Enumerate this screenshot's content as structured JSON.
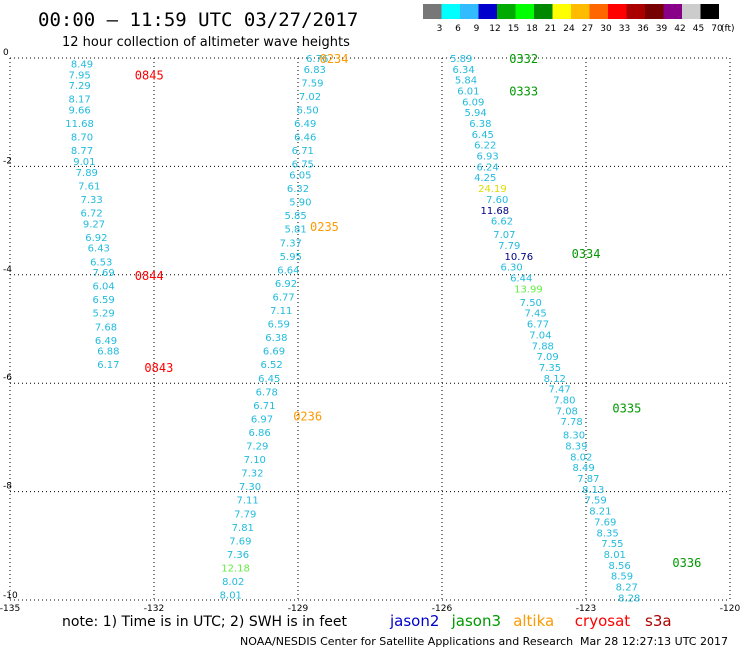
{
  "header": {
    "title": "00:00 – 11:59 UTC 03/27/2017",
    "subtitle": "12 hour collection of altimeter wave heights"
  },
  "colorbar": {
    "unit": "(ft)",
    "labels": [
      "3",
      "6",
      "9",
      "12",
      "15",
      "18",
      "21",
      "24",
      "27",
      "30",
      "33",
      "36",
      "39",
      "42",
      "45",
      "70"
    ],
    "colors": [
      "#777777",
      "#00ffff",
      "#33bbff",
      "#0000cc",
      "#00aa00",
      "#00ff00",
      "#008800",
      "#ffff00",
      "#ffbb00",
      "#ff6600",
      "#ff0000",
      "#aa0000",
      "#770000",
      "#880088",
      "#cccccc",
      "#000000"
    ]
  },
  "footer": {
    "note": "note: 1) Time is in UTC; 2) SWH is in feet",
    "credit": "NOAA/NESDIS Center for Satellite Applications and Research",
    "timestamp": "Mar 28 12:27:13 UTC 2017"
  },
  "satellites": [
    {
      "name": "jason2",
      "color": "#0000cc"
    },
    {
      "name": "jason3",
      "color": "#009900"
    },
    {
      "name": "altika",
      "color": "#ff9900"
    },
    {
      "name": "cryosat",
      "color": "#ff0000"
    },
    {
      "name": "s3a",
      "color": "#aa0000"
    }
  ],
  "chart_data": {
    "type": "scatter",
    "x_ticks": [
      -135,
      -132,
      -129,
      -126,
      -123,
      -120
    ],
    "y_ticks": [
      0,
      -2,
      -4,
      -6,
      -8,
      -10
    ],
    "xlim": [
      -135,
      -120
    ],
    "ylim": [
      -10,
      0
    ],
    "grid": true,
    "series": [
      {
        "name": "cryosat",
        "color": "#ff0000",
        "track_labels": [
          {
            "text": "0845",
            "x": -132.4,
            "y": -0.3
          },
          {
            "text": "0844",
            "x": -132.4,
            "y": -4.0
          },
          {
            "text": "0843",
            "x": -132.2,
            "y": -5.7
          }
        ],
        "points": [
          {
            "x": -133.5,
            "y": -0.1,
            "v": "8.49"
          },
          {
            "x": -133.55,
            "y": -0.3,
            "v": "7.95"
          },
          {
            "x": -133.55,
            "y": -0.5,
            "v": "7.29"
          },
          {
            "x": -133.55,
            "y": -0.75,
            "v": "8.17"
          },
          {
            "x": -133.55,
            "y": -0.95,
            "v": "9.66"
          },
          {
            "x": -133.55,
            "y": -1.2,
            "v": "11.68"
          },
          {
            "x": -133.5,
            "y": -1.45,
            "v": "8.70"
          },
          {
            "x": -133.5,
            "y": -1.7,
            "v": "8.77"
          },
          {
            "x": -133.45,
            "y": -1.9,
            "v": "9.01"
          },
          {
            "x": -133.4,
            "y": -2.1,
            "v": "7.89"
          },
          {
            "x": -133.35,
            "y": -2.35,
            "v": "7.61"
          },
          {
            "x": -133.3,
            "y": -2.6,
            "v": "7.33"
          },
          {
            "x": -133.3,
            "y": -2.85,
            "v": "6.72"
          },
          {
            "x": -133.25,
            "y": -3.05,
            "v": "9.27"
          },
          {
            "x": -133.2,
            "y": -3.3,
            "v": "6.92"
          },
          {
            "x": -133.15,
            "y": -3.5,
            "v": "6.43"
          },
          {
            "x": -133.1,
            "y": -3.75,
            "v": "6.53"
          },
          {
            "x": -133.05,
            "y": -3.95,
            "v": "7.69"
          },
          {
            "x": -133.05,
            "y": -4.2,
            "v": "6.04"
          },
          {
            "x": -133.05,
            "y": -4.45,
            "v": "6.59"
          },
          {
            "x": -133.05,
            "y": -4.7,
            "v": "5.29"
          },
          {
            "x": -133.0,
            "y": -4.95,
            "v": "7.68"
          },
          {
            "x": -133.0,
            "y": -5.2,
            "v": "6.49"
          },
          {
            "x": -132.95,
            "y": -5.4,
            "v": "6.88"
          },
          {
            "x": -132.95,
            "y": -5.65,
            "v": "6.17"
          }
        ]
      },
      {
        "name": "altika",
        "color": "#ff9900",
        "track_labels": [
          {
            "text": "0234",
            "x": -128.55,
            "y": 0.0
          },
          {
            "text": "0235",
            "x": -128.75,
            "y": -3.1
          },
          {
            "text": "0236",
            "x": -129.1,
            "y": -6.6
          }
        ],
        "points": [
          {
            "x": -128.6,
            "y": -0.0,
            "v": "6.76"
          },
          {
            "x": -128.65,
            "y": -0.2,
            "v": "6.83"
          },
          {
            "x": -128.7,
            "y": -0.45,
            "v": "7.59"
          },
          {
            "x": -128.75,
            "y": -0.7,
            "v": "7.02"
          },
          {
            "x": -128.8,
            "y": -0.95,
            "v": "6.50"
          },
          {
            "x": -128.85,
            "y": -1.2,
            "v": "6.49"
          },
          {
            "x": -128.85,
            "y": -1.45,
            "v": "6.46"
          },
          {
            "x": -128.9,
            "y": -1.7,
            "v": "6.71"
          },
          {
            "x": -128.9,
            "y": -1.95,
            "v": "6.75"
          },
          {
            "x": -128.95,
            "y": -2.15,
            "v": "6.05"
          },
          {
            "x": -129.0,
            "y": -2.4,
            "v": "6.32"
          },
          {
            "x": -128.95,
            "y": -2.65,
            "v": "5.90"
          },
          {
            "x": -129.05,
            "y": -2.9,
            "v": "5.85"
          },
          {
            "x": -129.05,
            "y": -3.15,
            "v": "5.81"
          },
          {
            "x": -129.15,
            "y": -3.4,
            "v": "7.37"
          },
          {
            "x": -129.15,
            "y": -3.65,
            "v": "5.95"
          },
          {
            "x": -129.2,
            "y": -3.9,
            "v": "6.64"
          },
          {
            "x": -129.25,
            "y": -4.15,
            "v": "6.92"
          },
          {
            "x": -129.3,
            "y": -4.4,
            "v": "6.77"
          },
          {
            "x": -129.35,
            "y": -4.65,
            "v": "7.11"
          },
          {
            "x": -129.4,
            "y": -4.9,
            "v": "6.59"
          },
          {
            "x": -129.45,
            "y": -5.15,
            "v": "6.38"
          },
          {
            "x": -129.5,
            "y": -5.4,
            "v": "6.69"
          },
          {
            "x": -129.55,
            "y": -5.65,
            "v": "6.52"
          },
          {
            "x": -129.6,
            "y": -5.9,
            "v": "6.45"
          },
          {
            "x": -129.65,
            "y": -6.15,
            "v": "6.78"
          },
          {
            "x": -129.7,
            "y": -6.4,
            "v": "6.71"
          },
          {
            "x": -129.75,
            "y": -6.65,
            "v": "6.97"
          },
          {
            "x": -129.8,
            "y": -6.9,
            "v": "6.86"
          },
          {
            "x": -129.85,
            "y": -7.15,
            "v": "7.29"
          },
          {
            "x": -129.9,
            "y": -7.4,
            "v": "7.10"
          },
          {
            "x": -129.95,
            "y": -7.65,
            "v": "7.32"
          },
          {
            "x": -130.0,
            "y": -7.9,
            "v": "7.30"
          },
          {
            "x": -130.05,
            "y": -8.15,
            "v": "7.11"
          },
          {
            "x": -130.1,
            "y": -8.4,
            "v": "7.79"
          },
          {
            "x": -130.15,
            "y": -8.65,
            "v": "7.81"
          },
          {
            "x": -130.2,
            "y": -8.9,
            "v": "7.69"
          },
          {
            "x": -130.25,
            "y": -9.15,
            "v": "7.36"
          },
          {
            "x": -130.3,
            "y": -9.4,
            "v": "12.18",
            "color": "#66ee44"
          },
          {
            "x": -130.35,
            "y": -9.65,
            "v": "8.02"
          },
          {
            "x": -130.4,
            "y": -9.9,
            "v": "8.01"
          }
        ]
      },
      {
        "name": "jason3",
        "color": "#009900",
        "track_labels": [
          {
            "text": "0332",
            "x": -124.6,
            "y": 0.0
          },
          {
            "text": "0333",
            "x": -124.6,
            "y": -0.6
          },
          {
            "text": "0334",
            "x": -123.3,
            "y": -3.6
          },
          {
            "text": "0335",
            "x": -122.45,
            "y": -6.45
          },
          {
            "text": "0336",
            "x": -121.2,
            "y": -9.3
          }
        ],
        "points": [
          {
            "x": -125.6,
            "y": -0.0,
            "v": "5.89"
          },
          {
            "x": -125.55,
            "y": -0.2,
            "v": "6.34"
          },
          {
            "x": -125.5,
            "y": -0.4,
            "v": "5.84"
          },
          {
            "x": -125.45,
            "y": -0.6,
            "v": "6.01"
          },
          {
            "x": -125.35,
            "y": -0.8,
            "v": "6.09"
          },
          {
            "x": -125.3,
            "y": -1.0,
            "v": "5.94"
          },
          {
            "x": -125.2,
            "y": -1.2,
            "v": "6.38"
          },
          {
            "x": -125.15,
            "y": -1.4,
            "v": "6.45"
          },
          {
            "x": -125.1,
            "y": -1.6,
            "v": "6.22"
          },
          {
            "x": -125.05,
            "y": -1.8,
            "v": "6.93"
          },
          {
            "x": -125.05,
            "y": -2.0,
            "v": "6.24"
          },
          {
            "x": -125.1,
            "y": -2.2,
            "v": "4.25"
          },
          {
            "x": -124.95,
            "y": -2.4,
            "v": "24.19",
            "color": "#dddd00"
          },
          {
            "x": -124.85,
            "y": -2.6,
            "v": "7.60"
          },
          {
            "x": -124.9,
            "y": -2.8,
            "v": "11.68",
            "color": "#000088"
          },
          {
            "x": -124.75,
            "y": -3.0,
            "v": "6.62"
          },
          {
            "x": -124.7,
            "y": -3.25,
            "v": "7.07"
          },
          {
            "x": -124.6,
            "y": -3.45,
            "v": "7.79"
          },
          {
            "x": -124.4,
            "y": -3.65,
            "v": "10.76",
            "color": "#000088"
          },
          {
            "x": -124.55,
            "y": -3.85,
            "v": "6.30"
          },
          {
            "x": -124.35,
            "y": -4.05,
            "v": "6.44"
          },
          {
            "x": -124.2,
            "y": -4.25,
            "v": "13.99",
            "color": "#66ee44"
          },
          {
            "x": -124.15,
            "y": -4.5,
            "v": "7.50"
          },
          {
            "x": -124.05,
            "y": -4.7,
            "v": "7.45"
          },
          {
            "x": -124.0,
            "y": -4.9,
            "v": "6.77"
          },
          {
            "x": -123.95,
            "y": -5.1,
            "v": "7.04"
          },
          {
            "x": -123.9,
            "y": -5.3,
            "v": "7.88"
          },
          {
            "x": -123.8,
            "y": -5.5,
            "v": "7.09"
          },
          {
            "x": -123.75,
            "y": -5.7,
            "v": "7.35"
          },
          {
            "x": -123.65,
            "y": -5.9,
            "v": "8.12"
          },
          {
            "x": -123.55,
            "y": -6.1,
            "v": "7.47"
          },
          {
            "x": -123.45,
            "y": -6.3,
            "v": "7.80"
          },
          {
            "x": -123.4,
            "y": -6.5,
            "v": "7.08"
          },
          {
            "x": -123.3,
            "y": -6.7,
            "v": "7.78"
          },
          {
            "x": -123.25,
            "y": -6.95,
            "v": "8.30"
          },
          {
            "x": -123.2,
            "y": -7.15,
            "v": "8.39"
          },
          {
            "x": -123.1,
            "y": -7.35,
            "v": "8.02"
          },
          {
            "x": -123.05,
            "y": -7.55,
            "v": "8.49"
          },
          {
            "x": -122.95,
            "y": -7.75,
            "v": "7.87"
          },
          {
            "x": -122.85,
            "y": -7.95,
            "v": "8.13"
          },
          {
            "x": -122.8,
            "y": -8.15,
            "v": "7.59"
          },
          {
            "x": -122.7,
            "y": -8.35,
            "v": "8.21"
          },
          {
            "x": -122.6,
            "y": -8.55,
            "v": "7.69"
          },
          {
            "x": -122.55,
            "y": -8.75,
            "v": "8.35"
          },
          {
            "x": -122.45,
            "y": -8.95,
            "v": "7.55"
          },
          {
            "x": -122.4,
            "y": -9.15,
            "v": "8.01"
          },
          {
            "x": -122.3,
            "y": -9.35,
            "v": "8.56"
          },
          {
            "x": -122.25,
            "y": -9.55,
            "v": "8.59"
          },
          {
            "x": -122.15,
            "y": -9.75,
            "v": "8.27"
          },
          {
            "x": -122.1,
            "y": -9.95,
            "v": "8.28"
          }
        ]
      }
    ]
  }
}
